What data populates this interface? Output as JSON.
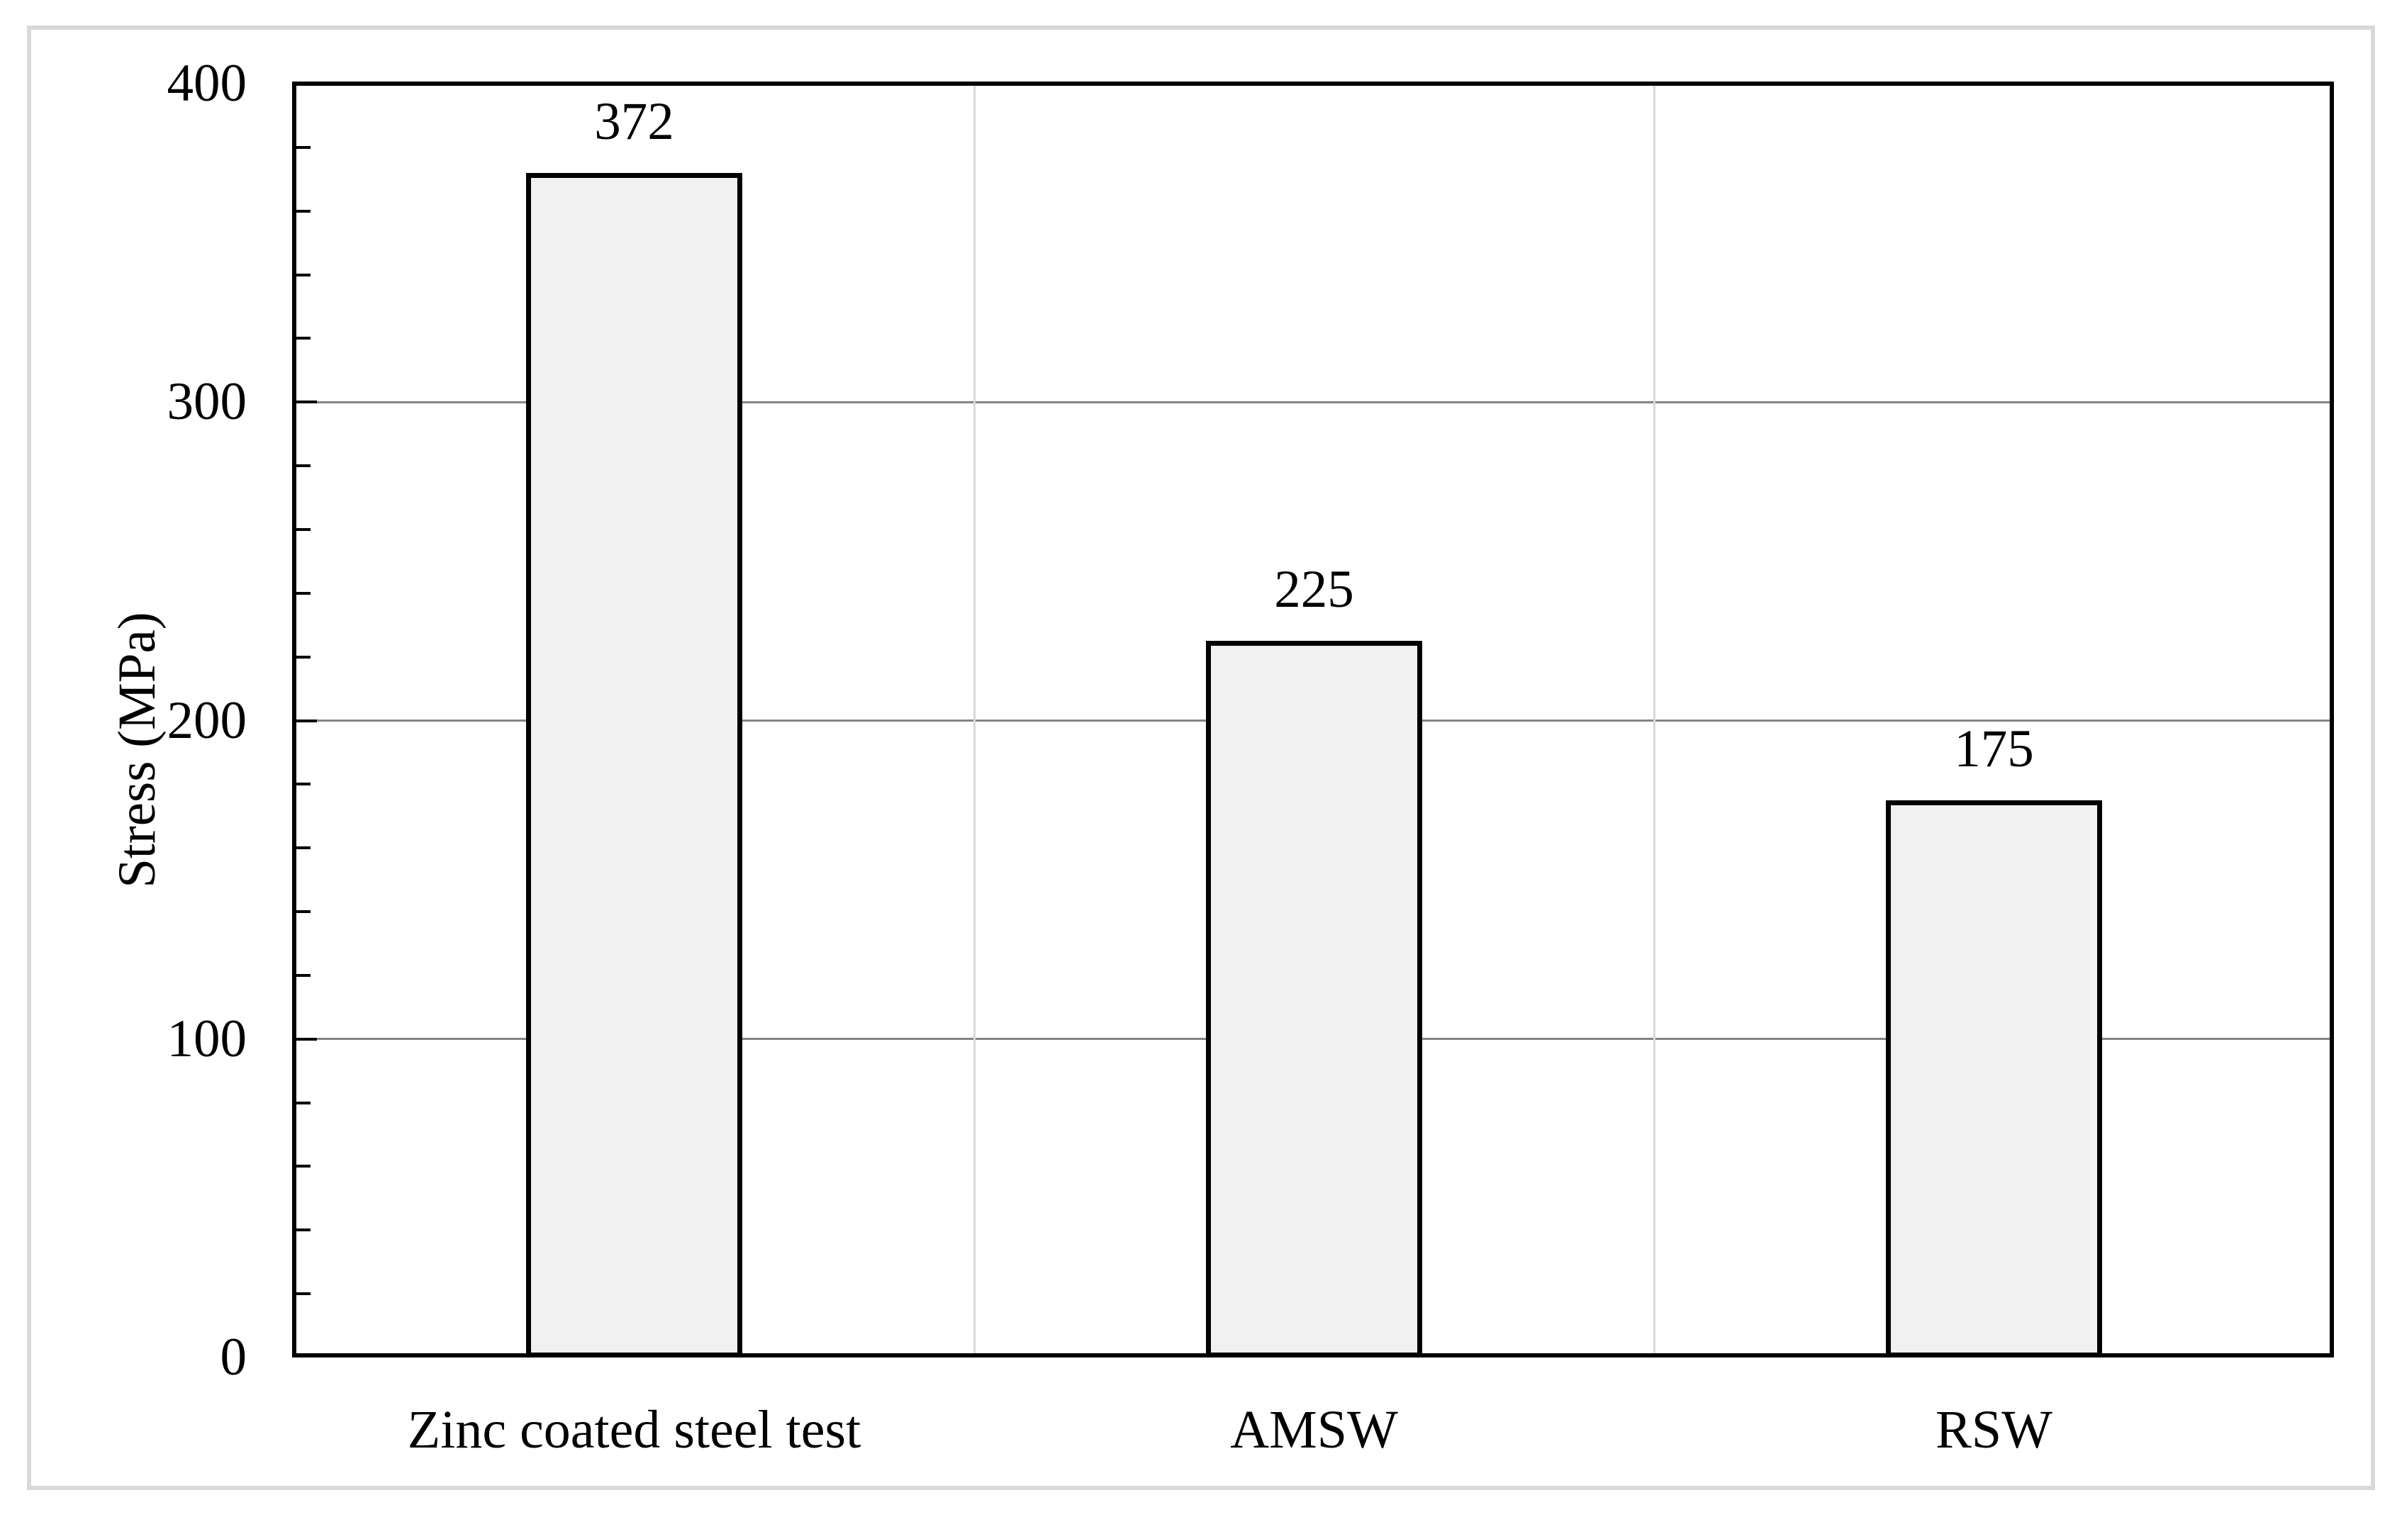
{
  "chart_data": {
    "type": "bar",
    "categories": [
      "Zinc coated steel test",
      "AMSW",
      "RSW"
    ],
    "values": [
      372,
      225,
      175
    ],
    "data_labels": [
      "372",
      "225",
      "175"
    ],
    "title": "",
    "xlabel": "",
    "ylabel": "Stress (MPa)",
    "ylim": [
      0,
      400
    ],
    "yticks": [
      0,
      100,
      200,
      300,
      400
    ],
    "ytick_labels": [
      "0",
      "100",
      "200",
      "300",
      "400"
    ],
    "minor_tick_step": 20,
    "grid": {
      "horizontal_major": true,
      "vertical_category_separators": true,
      "legend_position": "none"
    },
    "colors": {
      "background": "#ffffff",
      "figure_border": "#d9d9d9",
      "plot_border": "#000000",
      "major_gridline": "#848484",
      "category_gridline": "#d9d9d9",
      "bar_fill": "#f1f1f1",
      "bar_border": "#000000",
      "text": "#000000"
    }
  }
}
